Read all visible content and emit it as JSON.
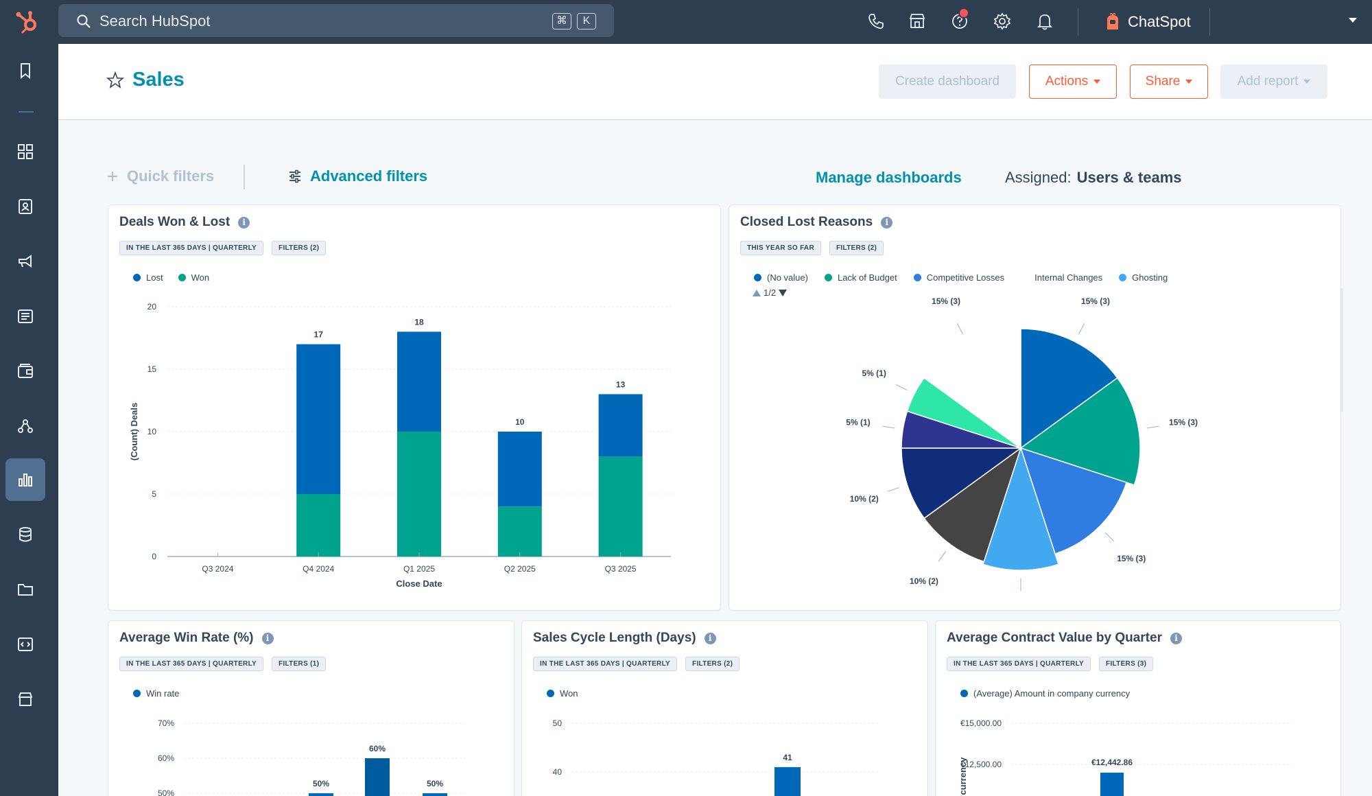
{
  "topnav": {
    "search_placeholder": "Search HubSpot",
    "search_key1": "⌘",
    "search_key2": "K",
    "icons": [
      "phone-icon",
      "marketplace-icon",
      "help-icon",
      "gear-icon",
      "bell-icon"
    ],
    "chatspot_label": "ChatSpot"
  },
  "sidebar": {
    "items": [
      "bookmark-icon",
      "workspaces-icon",
      "contacts-icon",
      "marketing-icon",
      "content-icon",
      "commerce-icon",
      "automation-icon",
      "reporting-icon",
      "data-management-icon",
      "library-icon",
      "development-icon",
      "app-marketplace-icon"
    ],
    "active": "reporting-icon"
  },
  "header": {
    "title": "Sales",
    "create_dashboard": "Create dashboard",
    "actions": "Actions",
    "share": "Share",
    "add_report": "Add report"
  },
  "filters": {
    "quick_filters": "Quick filters",
    "advanced_filters": "Advanced filters",
    "manage_dashboards": "Manage dashboards",
    "assigned_label": "Assigned:",
    "assigned_value": "Users & teams"
  },
  "cards": {
    "deals": {
      "title": "Deals Won & Lost",
      "tag1": "IN THE LAST 365 DAYS | QUARTERLY",
      "tag2": "FILTERS (2)",
      "legend_lost": "Lost",
      "legend_won": "Won",
      "ylabel": "(Count) Deals",
      "xlabel": "Close Date"
    },
    "closed_lost": {
      "title": "Closed Lost Reasons",
      "tag1": "THIS YEAR SO FAR",
      "tag2": "FILTERS (2)",
      "legend": [
        "(No value)",
        "Lack of Budget",
        "Competitive Losses",
        "Internal Changes",
        "Ghosting"
      ],
      "pager": "1/2"
    },
    "win_rate": {
      "title": "Average Win Rate (%)",
      "tag1": "IN THE LAST 365 DAYS | QUARTERLY",
      "tag2": "FILTERS (1)",
      "legend": "Win rate"
    },
    "sales_cycle": {
      "title": "Sales Cycle Length (Days)",
      "tag1": "IN THE LAST 365 DAYS | QUARTERLY",
      "tag2": "FILTERS (2)",
      "legend": "Won"
    },
    "contract_value": {
      "title": "Average Contract Value by Quarter",
      "tag1": "IN THE LAST 365 DAYS | QUARTERLY",
      "tag2": "FILTERS (3)",
      "legend": "(Average) Amount in company currency",
      "ylabel": "currency"
    }
  },
  "colors": {
    "lost": "#0068b8",
    "won": "#00a38d",
    "accent": "#0091ae",
    "orange": "#ff5c35",
    "nav": "#2d3e50"
  },
  "chart_data": [
    {
      "type": "bar",
      "title": "Deals Won & Lost",
      "xlabel": "Close Date",
      "ylabel": "(Count) Deals",
      "categories": [
        "Q3 2024",
        "Q4 2024",
        "Q1 2025",
        "Q2 2025",
        "Q3 2025"
      ],
      "series": [
        {
          "name": "Won",
          "values": [
            0,
            5,
            10,
            4,
            8
          ]
        },
        {
          "name": "Lost",
          "values": [
            0,
            12,
            8,
            6,
            5
          ]
        }
      ],
      "totals": [
        0,
        17,
        18,
        10,
        13
      ],
      "ylim": [
        0,
        20
      ],
      "yticks": [
        0,
        5,
        10,
        15,
        20
      ],
      "stacked": true,
      "legend": "top-left"
    },
    {
      "type": "pie",
      "title": "Closed Lost Reasons",
      "slices": [
        {
          "label": "15% (3)",
          "value": 15,
          "color": "#0068b8"
        },
        {
          "label": "15% (3)",
          "value": 15,
          "color": "#00a38d"
        },
        {
          "label": "15% (3)",
          "value": 15,
          "color": "#2f7de1"
        },
        {
          "label": "10% (2)",
          "value": 10,
          "color": "#42a8f0"
        },
        {
          "label": "10% (2)",
          "value": 10,
          "color": "#444444"
        },
        {
          "label": "10% (2)",
          "value": 10,
          "color": "#102d7a"
        },
        {
          "label": "5% (1)",
          "value": 5,
          "color": "#2d3590"
        },
        {
          "label": "5% (1)",
          "value": 5,
          "color": "#2ee6a8"
        },
        {
          "label": "15% (3)",
          "value": 15,
          "color": "#ffffff"
        }
      ]
    },
    {
      "type": "bar",
      "title": "Average Win Rate (%)",
      "yticks": [
        "70%",
        "60%",
        "50%"
      ],
      "ylim": [
        50,
        70
      ],
      "bars": [
        {
          "label": "50%",
          "value": 50,
          "color": "#0068b8"
        },
        {
          "label": "60%",
          "value": 60,
          "color": "#005a9e"
        },
        {
          "label": "50%",
          "value": 50,
          "color": "#0068b8"
        }
      ]
    },
    {
      "type": "bar",
      "title": "Sales Cycle Length (Days)",
      "yticks": [
        "50",
        "40"
      ],
      "ylim": [
        40,
        50
      ],
      "bars": [
        {
          "label": "41",
          "value": 41
        }
      ]
    },
    {
      "type": "bar",
      "title": "Average Contract Value by Quarter",
      "yticks": [
        "€15,000.00",
        "€12,500.00"
      ],
      "ylim": [
        12500,
        15000
      ],
      "bars": [
        {
          "label": "€12,442.86",
          "value": 12442.86
        }
      ]
    }
  ]
}
